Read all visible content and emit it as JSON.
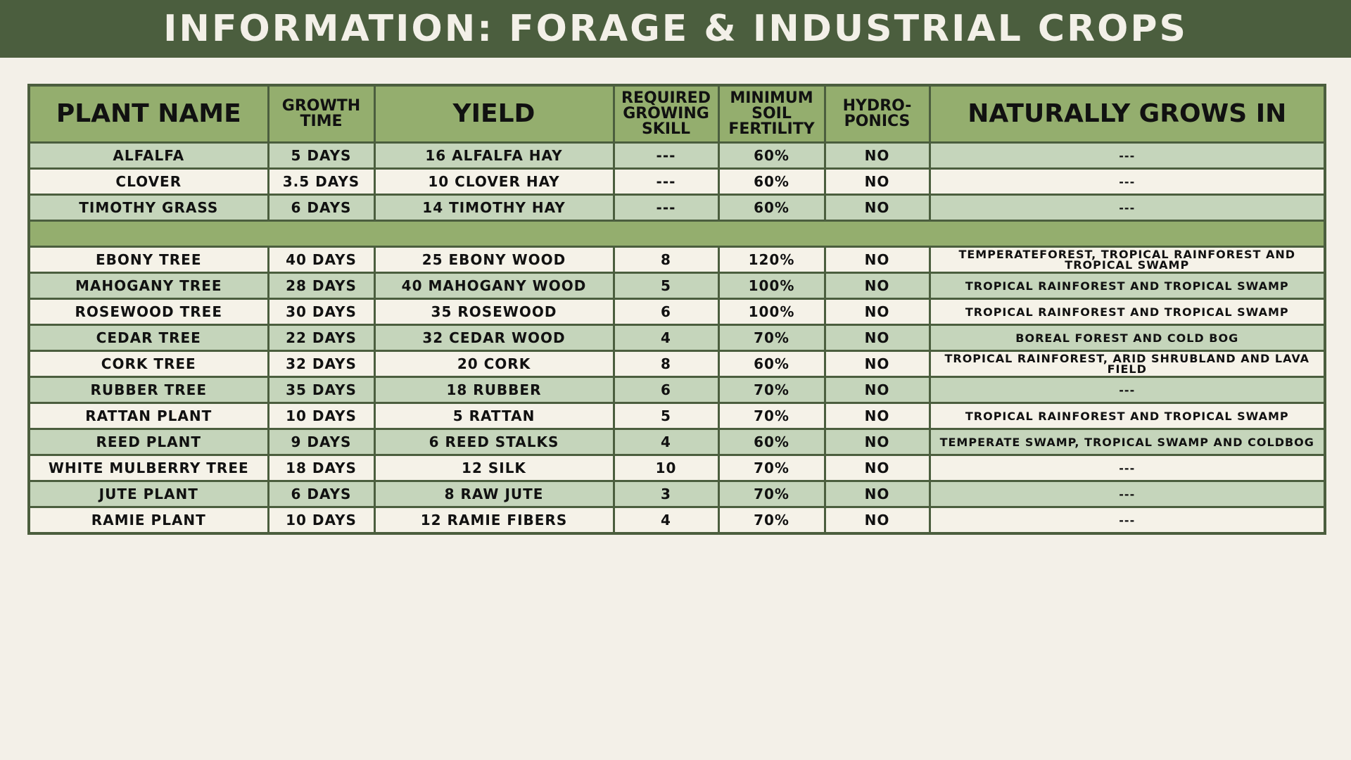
{
  "header": {
    "title": "INFORMATION: FORAGE & INDUSTRIAL CROPS"
  },
  "table": {
    "columns": [
      "PLANT NAME",
      "GROWTH TIME",
      "YIELD",
      "REQUIRED GROWING SKILL",
      "MINIMUM SOIL FERTILITY",
      "HYDRO-PONICS",
      "NATURALLY GROWS IN"
    ],
    "groups": [
      {
        "rows": [
          [
            "ALFALFA",
            "5 DAYS",
            "16 ALFALFA HAY",
            "---",
            "60%",
            "NO",
            "---"
          ],
          [
            "CLOVER",
            "3.5 DAYS",
            "10 CLOVER HAY",
            "---",
            "60%",
            "NO",
            "---"
          ],
          [
            "TIMOTHY GRASS",
            "6 DAYS",
            "14 TIMOTHY HAY",
            "---",
            "60%",
            "NO",
            "---"
          ]
        ]
      },
      {
        "rows": [
          [
            "EBONY TREE",
            "40 DAYS",
            "25 EBONY WOOD",
            "8",
            "120%",
            "NO",
            "TEMPERATEFOREST, TROPICAL RAINFOREST AND TROPICAL SWAMP"
          ],
          [
            "MAHOGANY TREE",
            "28 DAYS",
            "40 MAHOGANY WOOD",
            "5",
            "100%",
            "NO",
            "TROPICAL RAINFOREST AND TROPICAL SWAMP"
          ],
          [
            "ROSEWOOD TREE",
            "30 DAYS",
            "35 ROSEWOOD",
            "6",
            "100%",
            "NO",
            "TROPICAL RAINFOREST AND TROPICAL SWAMP"
          ],
          [
            "CEDAR TREE",
            "22 DAYS",
            "32 CEDAR WOOD",
            "4",
            "70%",
            "NO",
            "BOREAL FOREST AND COLD BOG"
          ],
          [
            "CORK TREE",
            "32 DAYS",
            "20 CORK",
            "8",
            "60%",
            "NO",
            "TROPICAL RAINFOREST, ARID SHRUBLAND AND LAVA FIELD"
          ],
          [
            "RUBBER TREE",
            "35 DAYS",
            "18 RUBBER",
            "6",
            "70%",
            "NO",
            "---"
          ],
          [
            "RATTAN PLANT",
            "10 DAYS",
            "5 RATTAN",
            "5",
            "70%",
            "NO",
            "TROPICAL RAINFOREST AND TROPICAL SWAMP"
          ],
          [
            "REED PLANT",
            "9 DAYS",
            "6 REED STALKS",
            "4",
            "60%",
            "NO",
            "TEMPERATE SWAMP, TROPICAL SWAMP AND COLDBOG"
          ],
          [
            "WHITE MULBERRY TREE",
            "18 DAYS",
            "12 SILK",
            "10",
            "70%",
            "NO",
            "---"
          ],
          [
            "JUTE PLANT",
            "6 DAYS",
            "8 RAW JUTE",
            "3",
            "70%",
            "NO",
            "---"
          ],
          [
            "RAMIE PLANT",
            "10 DAYS",
            "12 RAMIE FIBERS",
            "4",
            "70%",
            "NO",
            "---"
          ]
        ]
      }
    ]
  }
}
